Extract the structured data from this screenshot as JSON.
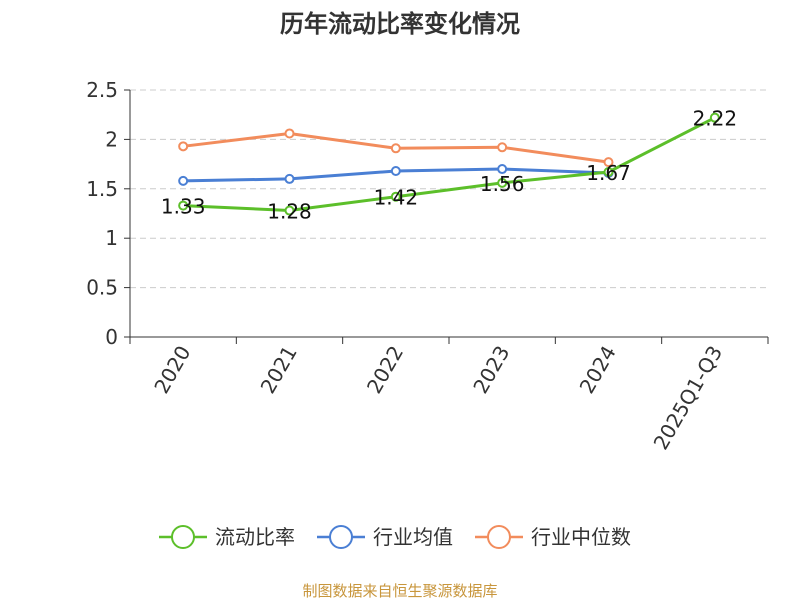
{
  "chart_data": {
    "type": "line",
    "title": "历年流动比率变化情况",
    "categories": [
      "2020",
      "2021",
      "2022",
      "2023",
      "2024",
      "2025Q1-Q3"
    ],
    "ylim": [
      0,
      2.5
    ],
    "yticks": [
      "0",
      "0.5",
      "1",
      "1.5",
      "2",
      "2.5"
    ],
    "grid": true,
    "legend_position": "bottom",
    "series": [
      {
        "name": "流动比率",
        "color": "#5cbf2a",
        "values": [
          1.33,
          1.28,
          1.42,
          1.56,
          1.67,
          2.22
        ],
        "labels": [
          "1.33",
          "1.28",
          "1.42",
          "1.56",
          "1.67",
          "2.22"
        ]
      },
      {
        "name": "行业均值",
        "color": "#4a7fd4",
        "values": [
          1.58,
          1.6,
          1.68,
          1.7,
          1.66,
          null
        ]
      },
      {
        "name": "行业中位数",
        "color": "#f28c5c",
        "values": [
          1.93,
          2.06,
          1.91,
          1.92,
          1.77,
          null
        ]
      }
    ]
  },
  "source": "制图数据来自恒生聚源数据库"
}
